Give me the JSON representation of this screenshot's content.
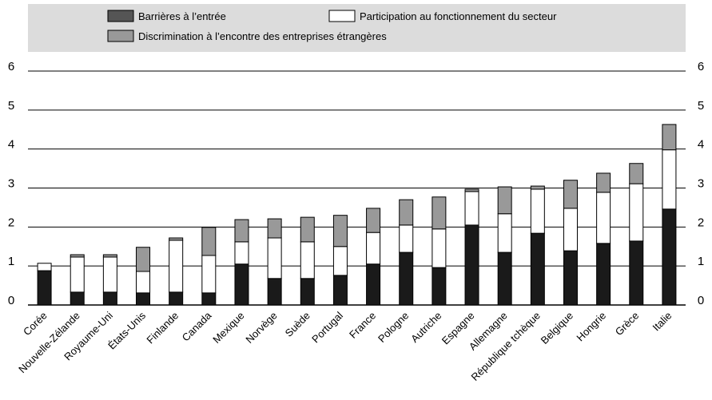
{
  "chart_data": {
    "type": "stacked_bar",
    "categories": [
      "Corée",
      "Nouvelle-Zélande",
      "Royaume-Uni",
      "États-Unis",
      "Finlande",
      "Canada",
      "Mexique",
      "Norvège",
      "Suède",
      "Portugal",
      "France",
      "Pologne",
      "Autriche",
      "Espagne",
      "Allemagne",
      "République tchèque",
      "Belgique",
      "Hongrie",
      "Grèce",
      "Italie"
    ],
    "series": [
      {
        "name": "Barrières à l’entrée",
        "color": "#1a1a1a",
        "values": [
          0.88,
          0.33,
          0.33,
          0.31,
          0.33,
          0.31,
          1.05,
          0.68,
          0.68,
          0.76,
          1.05,
          1.35,
          0.96,
          2.05,
          1.35,
          1.84,
          1.39,
          1.58,
          1.64,
          2.46
        ]
      },
      {
        "name": "Participation au fonctionnement du secteur",
        "color": "#ffffff",
        "values": [
          0.19,
          0.9,
          0.9,
          0.55,
          1.33,
          0.96,
          0.57,
          1.04,
          0.94,
          0.74,
          0.81,
          0.7,
          0.99,
          0.86,
          0.99,
          1.13,
          1.09,
          1.31,
          1.47,
          1.52
        ]
      },
      {
        "name": "Discrimination à l’encontre des entreprises étrangères",
        "color": "#999999",
        "values": [
          0,
          0.06,
          0.06,
          0.62,
          0.06,
          0.72,
          0.57,
          0.49,
          0.63,
          0.8,
          0.62,
          0.65,
          0.82,
          0.06,
          0.69,
          0.08,
          0.72,
          0.49,
          0.52,
          0.65
        ]
      }
    ],
    "ylim": [
      0,
      6
    ],
    "yticks": [
      0,
      1,
      2,
      3,
      4,
      5,
      6
    ],
    "grid": true
  }
}
